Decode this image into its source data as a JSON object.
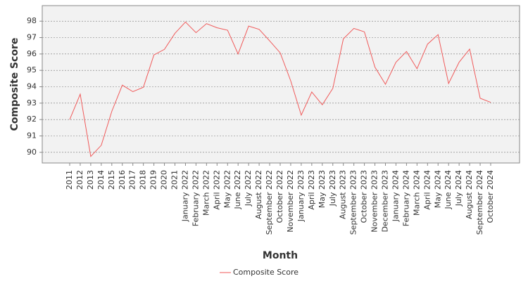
{
  "chart_data": {
    "type": "line",
    "x_label": "Month",
    "y_label": "Composite Score",
    "categories": [
      "2011",
      "2012",
      "2013",
      "2014",
      "2015",
      "2016",
      "2017",
      "2018",
      "2019",
      "2020",
      "2021",
      "January 2022",
      "February 2022",
      "March 2022",
      "April 2022",
      "May 2022",
      "June 2022",
      "July 2022",
      "August 2022",
      "September 2022",
      "October 2022",
      "November 2022",
      "January 2023",
      "April 2023",
      "May 2023",
      "July 2023",
      "August 2023",
      "September 2023",
      "October 2023",
      "November 2023",
      "December 2023",
      "January 2024",
      "February 2024",
      "March 2024",
      "April 2024",
      "May 2024",
      "June 2024",
      "July 2024",
      "August 2024",
      "September 2024",
      "October 2024"
    ],
    "series": [
      {
        "name": "Composite Score",
        "color": "#f05a5a",
        "values": [
          92.0,
          93.55,
          89.75,
          90.43,
          92.5,
          94.1,
          93.7,
          93.97,
          95.94,
          96.28,
          97.26,
          97.95,
          97.3,
          97.85,
          97.6,
          97.45,
          96.0,
          97.7,
          97.5,
          96.8,
          96.07,
          94.36,
          92.27,
          93.68,
          92.9,
          93.9,
          96.92,
          97.56,
          97.35,
          95.2,
          94.15,
          95.5,
          96.15,
          95.1,
          96.6,
          97.18,
          94.2,
          95.5,
          96.3,
          93.3,
          93.05
        ]
      }
    ],
    "ylim": [
      89.35,
      98.95
    ],
    "yticks": [
      90,
      91,
      92,
      93,
      94,
      95,
      96,
      97,
      98
    ],
    "grid": true,
    "legend": "bottom"
  }
}
